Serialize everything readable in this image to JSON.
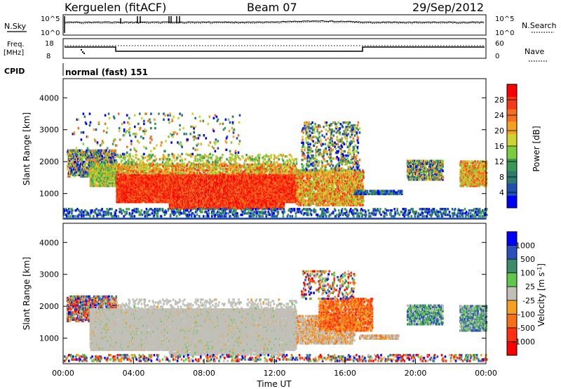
{
  "header": {
    "station": "Kerguelen (fitACF)",
    "beam": "Beam 07",
    "date": "29/Sep/2012"
  },
  "left_labels": {
    "nsky": "N.Sky",
    "nsky_top": "10^5",
    "nsky_bottom": "10^0",
    "freq_line1": "Freq.",
    "freq_line2": "[MHz]",
    "freq_top": "18",
    "freq_bottom": "8",
    "cpid": "CPID"
  },
  "right_labels": {
    "nsearch": "N.Search",
    "nsearch_top": "10^5",
    "nsearch_bottom": "10^0",
    "nave": "Nave",
    "nave_top": "60",
    "nave_bottom": "0"
  },
  "cpid_text": "normal (fast) 151",
  "colors": {
    "power": [
      "#0000ff",
      "#1f4fb0",
      "#2e7a6e",
      "#3a9a55",
      "#7ccd3c",
      "#cdd432",
      "#f5a020",
      "#f57020",
      "#f53a15",
      "#ff0000"
    ],
    "velocity": [
      "#0000ff",
      "#2a50c0",
      "#3a8c6a",
      "#5ec84a",
      "#c0c0b8",
      "#f5a020",
      "#f57018",
      "#ff3010",
      "#ff0000"
    ]
  },
  "chart_data": [
    {
      "type": "heatmap",
      "name": "power",
      "ylabel": "Slant Range [km]",
      "yticks": [
        1000,
        2000,
        3000,
        4000
      ],
      "ylim": [
        200,
        4600
      ],
      "xlim_hours": [
        0,
        24
      ],
      "colorbar_label": "Power [dB]",
      "colorbar_ticks": [
        4,
        8,
        12,
        16,
        20,
        24,
        28
      ],
      "colorbar_range": [
        0,
        32
      ]
    },
    {
      "type": "heatmap",
      "name": "velocity",
      "ylabel": "Slant Range [km]",
      "yticks": [
        1000,
        2000,
        3000,
        4000
      ],
      "ylim": [
        200,
        4600
      ],
      "xlim_hours": [
        0,
        24
      ],
      "colorbar_label": "Velocity [m s^-1]",
      "colorbar_ticks": [
        "1000",
        "500",
        "100",
        "25",
        "-25",
        "-100",
        "-500",
        "-1000"
      ]
    }
  ],
  "x_axis": {
    "label": "Time UT",
    "ticks": [
      "00:00",
      "04:00",
      "08:00",
      "12:00",
      "16:00",
      "20:00",
      "00:00"
    ]
  }
}
